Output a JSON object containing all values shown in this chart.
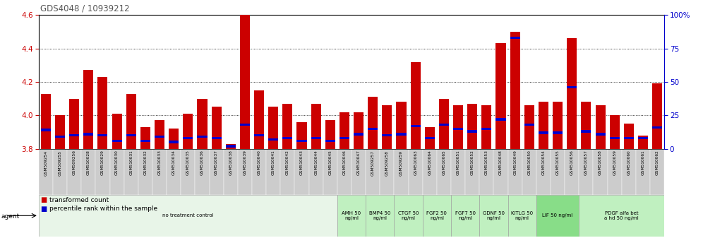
{
  "title": "GDS4048 / 10939212",
  "samples": [
    "GSM509254",
    "GSM509255",
    "GSM509256",
    "GSM510028",
    "GSM510029",
    "GSM510030",
    "GSM510031",
    "GSM510032",
    "GSM510033",
    "GSM510034",
    "GSM510035",
    "GSM510036",
    "GSM510037",
    "GSM510038",
    "GSM510039",
    "GSM510040",
    "GSM510041",
    "GSM510042",
    "GSM510043",
    "GSM510044",
    "GSM510045",
    "GSM510046",
    "GSM510047",
    "GSM509257",
    "GSM509258",
    "GSM509259",
    "GSM510063",
    "GSM510064",
    "GSM510065",
    "GSM510051",
    "GSM510052",
    "GSM510053",
    "GSM510048",
    "GSM510049",
    "GSM510050",
    "GSM510054",
    "GSM510055",
    "GSM510056",
    "GSM510057",
    "GSM510058",
    "GSM510059",
    "GSM510060",
    "GSM510061",
    "GSM510062"
  ],
  "transformed_counts": [
    4.13,
    4.0,
    4.1,
    4.27,
    4.23,
    4.01,
    4.13,
    3.93,
    3.97,
    3.92,
    4.01,
    4.1,
    4.05,
    3.83,
    4.6,
    4.15,
    4.05,
    4.07,
    3.96,
    4.07,
    3.97,
    4.02,
    4.02,
    4.11,
    4.06,
    4.08,
    4.32,
    3.93,
    4.1,
    4.06,
    4.07,
    4.06,
    4.43,
    4.5,
    4.06,
    4.08,
    4.08,
    4.46,
    4.08,
    4.06,
    4.0,
    3.95,
    3.88,
    4.19
  ],
  "percentile_ranks": [
    14,
    9,
    10,
    11,
    10,
    6,
    10,
    6,
    9,
    5,
    8,
    9,
    8,
    2,
    18,
    10,
    7,
    8,
    6,
    8,
    6,
    8,
    11,
    15,
    10,
    11,
    17,
    8,
    18,
    15,
    13,
    15,
    22,
    83,
    18,
    12,
    12,
    46,
    13,
    11,
    8,
    8,
    8,
    16
  ],
  "ylim_left": [
    3.8,
    4.6
  ],
  "ylim_right": [
    0,
    100
  ],
  "yticks_left": [
    3.8,
    4.0,
    4.2,
    4.4,
    4.6
  ],
  "yticks_right": [
    0,
    25,
    50,
    75,
    100
  ],
  "bar_color": "#cc0000",
  "percentile_color": "#0000cc",
  "agent_groups": [
    {
      "label": "no treatment control",
      "start": 0,
      "end": 21,
      "color": "#e8f5e8"
    },
    {
      "label": "AMH 50\nng/ml",
      "start": 21,
      "end": 23,
      "color": "#c0f0c0"
    },
    {
      "label": "BMP4 50\nng/ml",
      "start": 23,
      "end": 25,
      "color": "#c0f0c0"
    },
    {
      "label": "CTGF 50\nng/ml",
      "start": 25,
      "end": 27,
      "color": "#c0f0c0"
    },
    {
      "label": "FGF2 50\nng/ml",
      "start": 27,
      "end": 29,
      "color": "#c0f0c0"
    },
    {
      "label": "FGF7 50\nng/ml",
      "start": 29,
      "end": 31,
      "color": "#c0f0c0"
    },
    {
      "label": "GDNF 50\nng/ml",
      "start": 31,
      "end": 33,
      "color": "#c0f0c0"
    },
    {
      "label": "KITLG 50\nng/ml",
      "start": 33,
      "end": 35,
      "color": "#c0f0c0"
    },
    {
      "label": "LIF 50 ng/ml",
      "start": 35,
      "end": 38,
      "color": "#88dd88"
    },
    {
      "label": "PDGF alfa bet\na hd 50 ng/ml",
      "start": 38,
      "end": 44,
      "color": "#c0f0c0"
    }
  ],
  "left_yaxis_color": "#cc0000",
  "right_yaxis_color": "#0000cc",
  "title_color": "#555555",
  "xlabel_bg": "#cccccc",
  "xlabel_bg_alt": "#bbbbbb"
}
